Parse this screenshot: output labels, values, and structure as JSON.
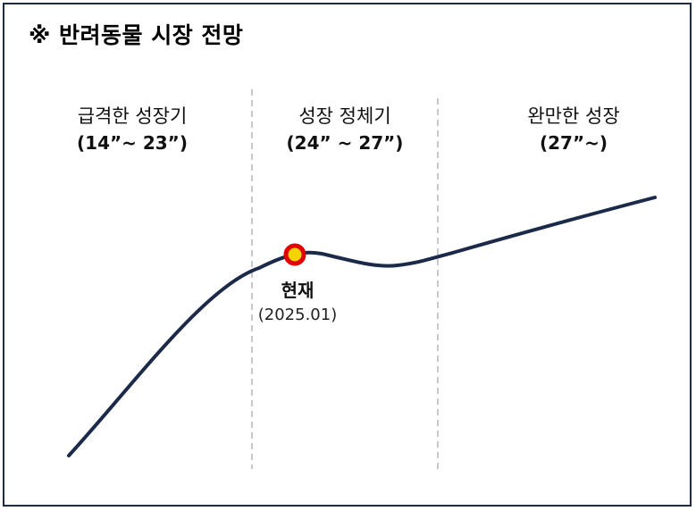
{
  "title": "※ 반려동물 시장 전망",
  "phases": [
    {
      "name": "급격한 성장기",
      "period": "(14”~ 23”)"
    },
    {
      "name": "성장 정체기",
      "period": "(24” ~ 27”)"
    },
    {
      "name": "완만한 성장",
      "period": "(27”~)"
    }
  ],
  "current_marker": {
    "label": "현재",
    "date": "(2025.01)"
  },
  "colors": {
    "curve": "#1c2a4a",
    "frame": "#1f2a44",
    "divider": "#c8c8c8",
    "marker_outer": "#e00000",
    "marker_inner": "#f5d300"
  }
}
